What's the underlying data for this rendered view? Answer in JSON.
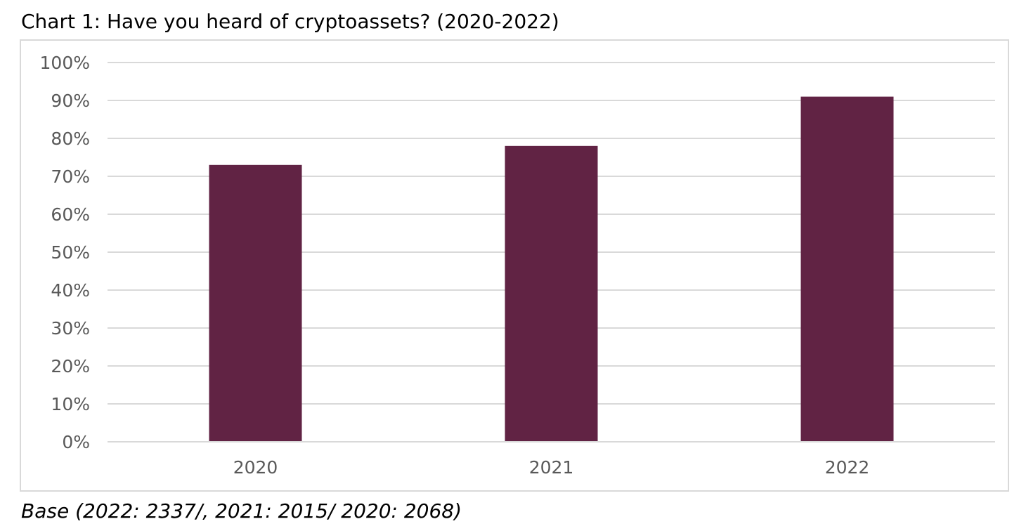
{
  "chart_data": {
    "type": "bar",
    "title": "Chart 1: Have you heard of cryptoassets? (2020-2022)",
    "categories": [
      "2020",
      "2021",
      "2022"
    ],
    "values": [
      73,
      78,
      91
    ],
    "ylim": [
      0,
      100
    ],
    "yticks": [
      "0%",
      "10%",
      "20%",
      "30%",
      "40%",
      "50%",
      "60%",
      "70%",
      "80%",
      "90%",
      "100%"
    ],
    "xlabel": "",
    "ylabel": "",
    "grid": true,
    "bar_color": "#612344",
    "grid_color": "#d9d9d9",
    "note": "Base (2022: 2337/, 2021: 2015/ 2020: 2068)"
  }
}
